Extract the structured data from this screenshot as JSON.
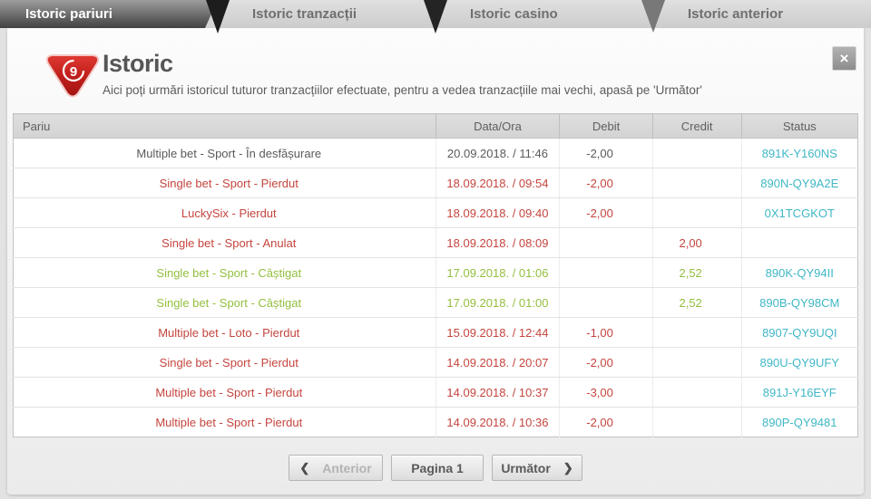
{
  "tabs": [
    {
      "label": "Istoric pariuri",
      "active": true
    },
    {
      "label": "Istoric tranzacții",
      "active": false
    },
    {
      "label": "Istoric casino",
      "active": false
    },
    {
      "label": "Istoric anterior",
      "active": false
    }
  ],
  "header": {
    "title": "Istoric",
    "subtitle": "Aici poți urmări istoricul tuturor tranzacțiilor efectuate, pentru a vedea tranzacțiile mai vechi, apasă pe 'Următor'",
    "close_label": "×",
    "logo_digit": "9"
  },
  "table": {
    "columns": [
      "Pariu",
      "Data/Ora",
      "Debit",
      "Credit",
      "Status"
    ],
    "rows": [
      {
        "pariu": "Multiple bet - Sport - În desfășurare",
        "data_ora": "20.09.2018. / 11:46",
        "debit": "-2,00",
        "credit": "",
        "status": "891K-Y160NS",
        "color": "neutral"
      },
      {
        "pariu": "Single bet - Sport - Pierdut",
        "data_ora": "18.09.2018. / 09:54",
        "debit": "-2,00",
        "credit": "",
        "status": "890N-QY9A2E",
        "color": "red"
      },
      {
        "pariu": "LuckySix - Pierdut",
        "data_ora": "18.09.2018. / 09:40",
        "debit": "-2,00",
        "credit": "",
        "status": "0X1TCGKOT",
        "color": "red"
      },
      {
        "pariu": "Single bet - Sport - Anulat",
        "data_ora": "18.09.2018. / 08:09",
        "debit": "",
        "credit": "2,00",
        "status": "",
        "color": "red"
      },
      {
        "pariu": "Single bet - Sport - Câștigat",
        "data_ora": "17.09.2018. / 01:06",
        "debit": "",
        "credit": "2,52",
        "status": "890K-QY94II",
        "color": "green"
      },
      {
        "pariu": "Single bet - Sport - Câștigat",
        "data_ora": "17.09.2018. / 01:00",
        "debit": "",
        "credit": "2,52",
        "status": "890B-QY98CM",
        "color": "green"
      },
      {
        "pariu": "Multiple bet - Loto - Pierdut",
        "data_ora": "15.09.2018. / 12:44",
        "debit": "-1,00",
        "credit": "",
        "status": "8907-QY9UQI",
        "color": "red"
      },
      {
        "pariu": "Single bet - Sport - Pierdut",
        "data_ora": "14.09.2018. / 20:07",
        "debit": "-2,00",
        "credit": "",
        "status": "890U-QY9UFY",
        "color": "red"
      },
      {
        "pariu": "Multiple bet - Sport - Pierdut",
        "data_ora": "14.09.2018. / 10:37",
        "debit": "-3,00",
        "credit": "",
        "status": "891J-Y16EYF",
        "color": "red"
      },
      {
        "pariu": "Multiple bet - Sport - Pierdut",
        "data_ora": "14.09.2018. / 10:36",
        "debit": "-2,00",
        "credit": "",
        "status": "890P-QY9481",
        "color": "red"
      }
    ]
  },
  "pagination": {
    "prev_icon": "❮",
    "prev_label": "Anterior",
    "page_label": "Pagina 1",
    "next_label": "Următor",
    "next_icon": "❯"
  },
  "colors": {
    "lost_red": "#c4453e",
    "won_green": "#94bf3f",
    "status_teal": "#3fb7c6",
    "active_tab_dark": "#414141",
    "brand_red": "#cc1f1f"
  }
}
